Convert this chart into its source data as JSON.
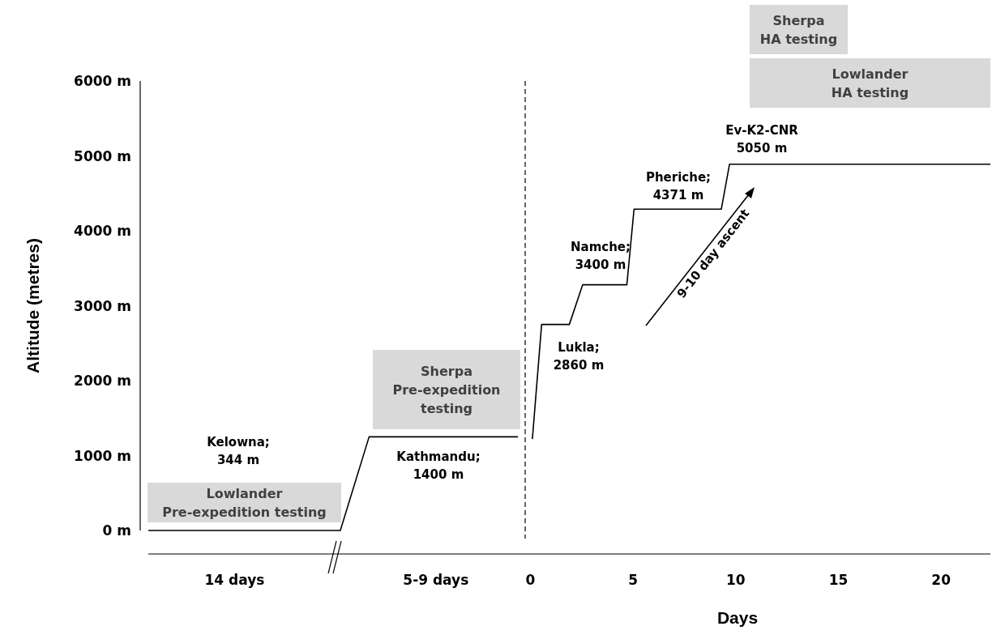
{
  "chart_data": {
    "type": "line",
    "xlabel": "Days",
    "ylabel": "Altitude (metres)",
    "x": [
      -18.6,
      -9.25,
      -7.85,
      -0.6,
      -0.3,
      0.1,
      0.55,
      1.9,
      2.55,
      4.7,
      5.05,
      9.3,
      9.7,
      22.4
    ],
    "series": [
      {
        "color": "#000000",
        "values": [
          0,
          0,
          1250,
          1250,
          null,
          1220,
          2750,
          2750,
          3280,
          3280,
          4290,
          4290,
          4890,
          4890
        ]
      }
    ],
    "xlim": [
      -18.6,
      22.4
    ],
    "xticks": [
      {
        "value": -14.4,
        "label": "14 days"
      },
      {
        "value": -4.6,
        "label": "5-9 days"
      },
      0,
      5,
      10,
      15,
      20
    ],
    "ylim": [
      0,
      6000
    ],
    "yticks": [
      {
        "value": 0,
        "label": "0 m"
      },
      {
        "value": 1000,
        "label": "1000 m"
      },
      {
        "value": 2000,
        "label": "2000 m"
      },
      {
        "value": 3000,
        "label": "3000 m"
      },
      {
        "value": 4000,
        "label": "4000 m"
      },
      {
        "value": 5000,
        "label": "5000 m"
      },
      {
        "value": 6000,
        "label": "6000 m"
      }
    ],
    "ref_lines": [
      {
        "axis": "x",
        "value": -0.25,
        "line_style": "dashed",
        "color": "#000000"
      }
    ],
    "marker": "none",
    "line_style": "solid",
    "grid": false,
    "annotations": [
      "Kelowna;\n344 m",
      "Kathmandu;\n1400 m",
      "Lukla;\n2860 m",
      "Namche;\n3400 m",
      "Pheriche;\n4371 m",
      "Ev-K2-CNR\n5050 m",
      "Lowlander\nPre-expedition testing",
      "Sherpa\nPre-expedition\ntesting",
      "Sherpa\nHA testing",
      "Lowlander\nHA testing",
      "9-10 day ascent"
    ]
  }
}
